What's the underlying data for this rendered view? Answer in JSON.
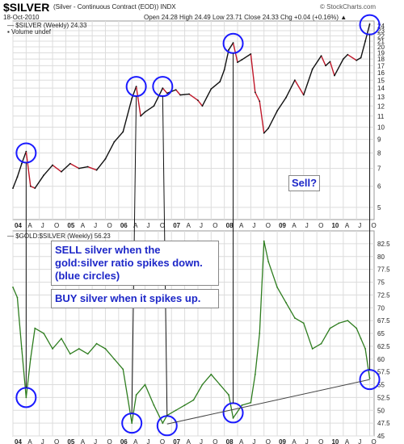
{
  "header": {
    "symbol": "$SILVER",
    "title": "(Silver - Continuous Contract (EOD)) INDX",
    "watermark": "© StockCharts.com",
    "date": "18-Oct-2010",
    "quote": "Open 24.28  High 24.49  Low 23.71  Close 24.33  Chg +0.04 (+0.16%) ▲",
    "legend_silver": "— $SILVER (Weekly) 24.33",
    "legend_volume": "▪ Volume undef",
    "legend_ratio": "— $GOLD:$SILVER (Weekly) 56.23"
  },
  "annotations": {
    "sell_rule": "SELL silver when the gold:silver ratio spikes down. (blue circles)",
    "buy_rule": "BUY silver when it spikes up.",
    "sell_question": "Sell?"
  },
  "colors": {
    "silver_up": "#111111",
    "silver_down": "#c0182a",
    "ratio": "#2e7d1f",
    "grid": "#dcdcdc",
    "circle": "#1a1aff",
    "label_box": "#1d27c8"
  },
  "chart_data": [
    {
      "type": "line",
      "title": "$SILVER (Weekly) 24.33",
      "xlabel": "",
      "ylabel": "",
      "x_ticks": [
        "04",
        "A",
        "J",
        "O",
        "05",
        "A",
        "J",
        "O",
        "06",
        "A",
        "J",
        "O",
        "07",
        "A",
        "J",
        "O",
        "08",
        "A",
        "J",
        "O",
        "09",
        "A",
        "J",
        "O",
        "10",
        "A",
        "J",
        "O"
      ],
      "ylim": [
        4.5,
        25
      ],
      "scale": "log",
      "y_ticks": [
        5,
        6,
        7,
        8,
        9,
        10,
        11,
        12,
        13,
        14,
        15,
        16,
        17,
        18,
        19,
        20,
        21,
        22,
        23,
        24
      ],
      "series": [
        {
          "points": [
            [
              "2004-01",
              5.9
            ],
            [
              "2004-02",
              6.5
            ],
            [
              "2004-03",
              7.3
            ],
            [
              "2004-04",
              8.1
            ],
            [
              "2004-05",
              6.0
            ],
            [
              "2004-06",
              5.9
            ],
            [
              "2004-08",
              6.6
            ],
            [
              "2004-10",
              7.2
            ],
            [
              "2004-12",
              6.8
            ],
            [
              "2005-02",
              7.3
            ],
            [
              "2005-04",
              7.0
            ],
            [
              "2005-06",
              7.1
            ],
            [
              "2005-08",
              6.9
            ],
            [
              "2005-10",
              7.6
            ],
            [
              "2005-12",
              8.8
            ],
            [
              "2006-02",
              9.6
            ],
            [
              "2006-04",
              12.8
            ],
            [
              "2006-05",
              14.2
            ],
            [
              "2006-06",
              11.0
            ],
            [
              "2006-07",
              11.4
            ],
            [
              "2006-09",
              12.0
            ],
            [
              "2006-11",
              14.0
            ],
            [
              "2006-12",
              13.4
            ],
            [
              "2007-02",
              13.8
            ],
            [
              "2007-03",
              13.2
            ],
            [
              "2007-05",
              13.3
            ],
            [
              "2007-07",
              12.6
            ],
            [
              "2007-08",
              12.0
            ],
            [
              "2007-10",
              13.9
            ],
            [
              "2007-12",
              14.8
            ],
            [
              "2008-01",
              16.4
            ],
            [
              "2008-02",
              19.5
            ],
            [
              "2008-03",
              20.7
            ],
            [
              "2008-04",
              17.5
            ],
            [
              "2008-05",
              17.9
            ],
            [
              "2008-07",
              18.8
            ],
            [
              "2008-08",
              13.5
            ],
            [
              "2008-09",
              12.5
            ],
            [
              "2008-10",
              9.5
            ],
            [
              "2008-11",
              9.9
            ],
            [
              "2009-01",
              11.5
            ],
            [
              "2009-03",
              12.9
            ],
            [
              "2009-05",
              15.0
            ],
            [
              "2009-07",
              13.2
            ],
            [
              "2009-09",
              16.5
            ],
            [
              "2009-11",
              18.5
            ],
            [
              "2009-12",
              17.0
            ],
            [
              "2010-01",
              17.6
            ],
            [
              "2010-02",
              15.6
            ],
            [
              "2010-04",
              18.0
            ],
            [
              "2010-05",
              18.7
            ],
            [
              "2010-07",
              17.8
            ],
            [
              "2010-08",
              18.2
            ],
            [
              "2010-09",
              21.0
            ],
            [
              "2010-10",
              24.33
            ]
          ]
        }
      ],
      "circles": [
        [
          "2004-04",
          8.0
        ],
        [
          "2006-05",
          14.2
        ],
        [
          "2006-11",
          14.2
        ],
        [
          "2008-03",
          20.6
        ],
        [
          "2010-10",
          24.2
        ]
      ]
    },
    {
      "type": "line",
      "title": "$GOLD:$SILVER (Weekly) 56.23",
      "xlabel": "",
      "ylabel": "",
      "x_ticks": [
        "04",
        "A",
        "J",
        "O",
        "05",
        "A",
        "J",
        "O",
        "06",
        "A",
        "J",
        "O",
        "07",
        "A",
        "J",
        "O",
        "08",
        "A",
        "J",
        "O",
        "09",
        "A",
        "J",
        "O",
        "10",
        "A",
        "J",
        "O"
      ],
      "ylim": [
        45,
        85
      ],
      "y_ticks": [
        45,
        47.5,
        50,
        52.5,
        55,
        57.5,
        60,
        62.5,
        65,
        67.5,
        70,
        72.5,
        75,
        77.5,
        80,
        82.5
      ],
      "series": [
        {
          "points": [
            [
              "2004-01",
              74
            ],
            [
              "2004-02",
              72
            ],
            [
              "2004-03",
              62
            ],
            [
              "2004-04",
              52.5
            ],
            [
              "2004-05",
              60
            ],
            [
              "2004-06",
              66
            ],
            [
              "2004-08",
              65
            ],
            [
              "2004-10",
              62
            ],
            [
              "2004-12",
              64
            ],
            [
              "2005-02",
              61
            ],
            [
              "2005-04",
              62
            ],
            [
              "2005-06",
              61
            ],
            [
              "2005-08",
              63
            ],
            [
              "2005-10",
              62
            ],
            [
              "2005-12",
              60
            ],
            [
              "2006-02",
              58
            ],
            [
              "2006-04",
              47.5
            ],
            [
              "2006-05",
              53
            ],
            [
              "2006-07",
              55
            ],
            [
              "2006-09",
              51
            ],
            [
              "2006-11",
              47.5
            ],
            [
              "2006-12",
              49
            ],
            [
              "2007-02",
              50
            ],
            [
              "2007-04",
              51
            ],
            [
              "2007-06",
              52
            ],
            [
              "2007-08",
              55
            ],
            [
              "2007-10",
              57
            ],
            [
              "2007-12",
              55
            ],
            [
              "2008-02",
              53
            ],
            [
              "2008-03",
              48.5
            ],
            [
              "2008-05",
              51
            ],
            [
              "2008-07",
              51.5
            ],
            [
              "2008-08",
              57
            ],
            [
              "2008-09",
              65
            ],
            [
              "2008-10",
              83
            ],
            [
              "2008-11",
              79
            ],
            [
              "2009-01",
              74
            ],
            [
              "2009-03",
              71
            ],
            [
              "2009-05",
              68
            ],
            [
              "2009-07",
              67
            ],
            [
              "2009-09",
              62
            ],
            [
              "2009-11",
              63
            ],
            [
              "2010-01",
              66
            ],
            [
              "2010-03",
              67
            ],
            [
              "2010-05",
              67.5
            ],
            [
              "2010-07",
              66
            ],
            [
              "2010-08",
              64
            ],
            [
              "2010-09",
              62
            ],
            [
              "2010-10",
              56.23
            ]
          ]
        }
      ],
      "circles": [
        [
          "2004-04",
          52.5
        ],
        [
          "2006-04",
          47.5
        ],
        [
          "2006-12",
          47
        ],
        [
          "2008-03",
          49.5
        ],
        [
          "2010-10",
          56
        ]
      ]
    }
  ]
}
